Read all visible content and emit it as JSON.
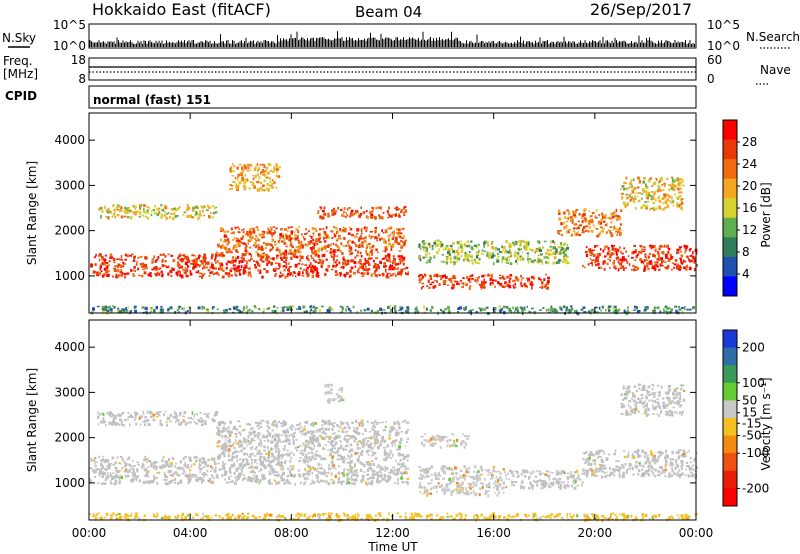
{
  "header": {
    "station": "Hokkaido East (fitACF)",
    "beam": "Beam 04",
    "date": "26/Sep/2017"
  },
  "strips": {
    "nsky_label": "N.Sky",
    "nsky_ticks": [
      "10^5",
      "10^0"
    ],
    "nsky_right_ticks": [
      "10^5",
      "10^0"
    ],
    "nsearch_label": "N.Search",
    "freq_label_1": "Freq.",
    "freq_label_2": "[MHz]",
    "freq_ticks": [
      "18",
      "8"
    ],
    "nave_ticks": [
      "60",
      "0"
    ],
    "nave_label": "Nave",
    "cpid_label": "CPID",
    "cpid_value": "normal (fast) 151"
  },
  "colors": {
    "ground_scatter": "#c0c0c0",
    "power_scale": [
      "#0000ff",
      "#1f4faf",
      "#2e7d5b",
      "#5fae4f",
      "#d7d230",
      "#f5a623",
      "#f06a10",
      "#e83a08",
      "#ff0000"
    ],
    "velocity_scale": [
      "#1a3ad8",
      "#2e6da8",
      "#3b9a5a",
      "#66cc33",
      "#c8c8c8",
      "#f5c020",
      "#f58a10",
      "#f05010",
      "#e81e08",
      "#ff0000"
    ]
  },
  "chart_data": [
    {
      "type": "heatmap",
      "panel": "power",
      "xlabel": "Time UT",
      "ylabel": "Slant Range [km]",
      "x_ticks": [
        "00:00",
        "04:00",
        "08:00",
        "12:00",
        "16:00",
        "20:00",
        "00:00"
      ],
      "y_ticks": [
        1000,
        2000,
        3000,
        4000
      ],
      "ylim": [
        180,
        4600
      ],
      "xlim_hours": [
        0,
        24
      ],
      "colorbar_label": "Power [dB]",
      "colorbar_ticks": [
        4,
        8,
        12,
        16,
        20,
        24,
        28
      ],
      "colorbar_range": [
        0,
        32
      ],
      "features": [
        {
          "t0": 0,
          "t1": 12.6,
          "r0": 1000,
          "r1": 1500,
          "power": 27
        },
        {
          "t0": 5,
          "t1": 12.5,
          "r0": 1500,
          "r1": 2100,
          "power": 24
        },
        {
          "t0": 9,
          "t1": 12.5,
          "r0": 2300,
          "r1": 2550,
          "power": 25
        },
        {
          "t0": 13,
          "t1": 18.2,
          "r0": 750,
          "r1": 1050,
          "power": 27
        },
        {
          "t0": 13,
          "t1": 19,
          "r0": 1300,
          "r1": 1800,
          "power": 14
        },
        {
          "t0": 19.5,
          "t1": 24,
          "r0": 1150,
          "r1": 1700,
          "power": 27
        },
        {
          "t0": 18.5,
          "t1": 21,
          "r0": 1900,
          "r1": 2500,
          "power": 22
        },
        {
          "t0": 0.3,
          "t1": 5,
          "r0": 2300,
          "r1": 2600,
          "power": 17
        },
        {
          "t0": 5.5,
          "t1": 7.5,
          "r0": 2900,
          "r1": 3500,
          "power": 20
        },
        {
          "t0": 21,
          "t1": 23.5,
          "r0": 2500,
          "r1": 3200,
          "power": 18
        },
        {
          "t0": 0,
          "t1": 24,
          "r0": 200,
          "r1": 350,
          "power": 10
        }
      ]
    },
    {
      "type": "heatmap",
      "panel": "velocity",
      "xlabel": "Time UT",
      "ylabel": "Slant Range [km]",
      "x_ticks": [
        "00:00",
        "04:00",
        "08:00",
        "12:00",
        "16:00",
        "20:00",
        "00:00"
      ],
      "y_ticks": [
        1000,
        2000,
        3000,
        4000
      ],
      "ylim": [
        180,
        4600
      ],
      "xlim_hours": [
        0,
        24
      ],
      "colorbar_label": "Velocity [m s⁻¹]",
      "colorbar_ticks": [
        200,
        100,
        50,
        15,
        -15,
        -50,
        -100,
        -200
      ],
      "colorbar_range": [
        -250,
        250
      ],
      "features": [
        {
          "t0": 0,
          "t1": 12.6,
          "r0": 1000,
          "r1": 1600,
          "kind": "ground"
        },
        {
          "t0": 5,
          "t1": 12.6,
          "r0": 1600,
          "r1": 2400,
          "kind": "ground"
        },
        {
          "t0": 19.5,
          "t1": 24,
          "r0": 1150,
          "r1": 1750,
          "kind": "ground"
        },
        {
          "t0": 16.5,
          "t1": 19.5,
          "r0": 900,
          "r1": 1300,
          "kind": "ground"
        },
        {
          "t0": 13,
          "t1": 16.5,
          "r0": 750,
          "r1": 1400,
          "velocity": 40
        },
        {
          "t0": 13,
          "t1": 15,
          "r0": 1800,
          "r1": 2100,
          "velocity": 40
        },
        {
          "t0": 9.3,
          "t1": 10,
          "r0": 2800,
          "r1": 3200,
          "velocity": 40
        },
        {
          "t0": 0.3,
          "t1": 5,
          "r0": 2300,
          "r1": 2600,
          "kind": "ground"
        },
        {
          "t0": 21,
          "t1": 23.5,
          "r0": 2500,
          "r1": 3200,
          "kind": "ground"
        },
        {
          "t0": 0,
          "t1": 24,
          "r0": 200,
          "r1": 350,
          "velocity": -40
        }
      ]
    }
  ]
}
